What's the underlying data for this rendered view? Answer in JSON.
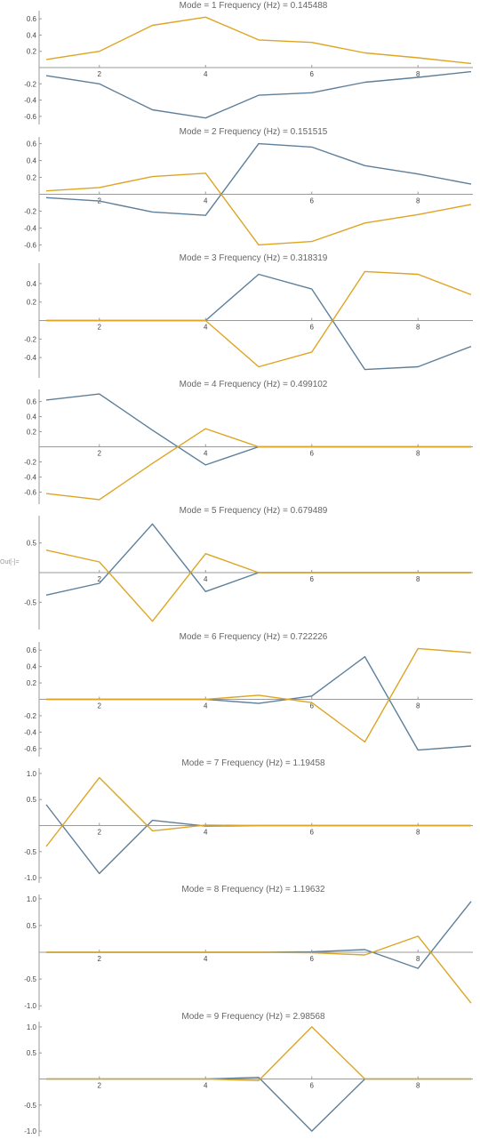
{
  "out_label": "Out[-]=",
  "colors": {
    "series_1": "#5E7F9A",
    "series_2": "#DDA523",
    "axis": "#9a9a9a"
  },
  "chart_data": [
    {
      "type": "line",
      "title": "Mode = 1 Frequency (Hz) = 0.145488",
      "x": [
        1,
        2,
        3,
        4,
        5,
        6,
        7,
        8,
        9
      ],
      "xticks": [
        2,
        4,
        6,
        8
      ],
      "ylim": [
        -0.7,
        0.7
      ],
      "yticks": [
        -0.6,
        -0.4,
        -0.2,
        0.2,
        0.4,
        0.6
      ],
      "ytick_labels": [
        "-0.6",
        "-0.4",
        "-0.2",
        "0.2",
        "0.4",
        "0.6"
      ],
      "series": [
        {
          "values": [
            -0.1,
            -0.2,
            -0.52,
            -0.62,
            -0.34,
            -0.31,
            -0.18,
            -0.12,
            -0.05
          ]
        },
        {
          "values": [
            0.1,
            0.2,
            0.52,
            0.62,
            0.34,
            0.31,
            0.18,
            0.12,
            0.05
          ]
        }
      ]
    },
    {
      "type": "line",
      "title": "Mode = 2 Frequency (Hz) = 0.151515",
      "x": [
        1,
        2,
        3,
        4,
        5,
        6,
        7,
        8,
        9
      ],
      "xticks": [
        2,
        4,
        6,
        8
      ],
      "ylim": [
        -0.68,
        0.68
      ],
      "yticks": [
        -0.6,
        -0.4,
        -0.2,
        0.2,
        0.4,
        0.6
      ],
      "ytick_labels": [
        "-0.6",
        "-0.4",
        "-0.2",
        "0.2",
        "0.4",
        "0.6"
      ],
      "series": [
        {
          "values": [
            -0.04,
            -0.08,
            -0.21,
            -0.25,
            0.6,
            0.56,
            0.34,
            0.24,
            0.12
          ]
        },
        {
          "values": [
            0.04,
            0.08,
            0.21,
            0.25,
            -0.6,
            -0.56,
            -0.34,
            -0.24,
            -0.12
          ]
        }
      ]
    },
    {
      "type": "line",
      "title": "Mode = 3 Frequency (Hz) = 0.318319",
      "x": [
        1,
        2,
        3,
        4,
        5,
        6,
        7,
        8,
        9
      ],
      "xticks": [
        2,
        4,
        6,
        8
      ],
      "ylim": [
        -0.62,
        0.62
      ],
      "yticks": [
        -0.4,
        -0.2,
        0.2,
        0.4
      ],
      "ytick_labels": [
        "-0.4",
        "-0.2",
        "0.2",
        "0.4"
      ],
      "series": [
        {
          "values": [
            0,
            0,
            0,
            0,
            0.5,
            0.34,
            -0.53,
            -0.5,
            -0.28
          ]
        },
        {
          "values": [
            0,
            0,
            0,
            0,
            -0.5,
            -0.34,
            0.53,
            0.5,
            0.28
          ]
        }
      ]
    },
    {
      "type": "line",
      "title": "Mode = 4 Frequency (Hz) = 0.499102",
      "x": [
        1,
        2,
        3,
        4,
        5,
        6,
        7,
        8,
        9
      ],
      "xticks": [
        2,
        4,
        6,
        8
      ],
      "ylim": [
        -0.76,
        0.76
      ],
      "yticks": [
        -0.6,
        -0.4,
        -0.2,
        0.2,
        0.4,
        0.6
      ],
      "ytick_labels": [
        "-0.6",
        "-0.4",
        "-0.2",
        "0.2",
        "0.4",
        "0.6"
      ],
      "series": [
        {
          "values": [
            0.62,
            0.7,
            0.22,
            -0.24,
            0,
            0,
            0,
            0,
            0
          ]
        },
        {
          "values": [
            -0.62,
            -0.7,
            -0.22,
            0.24,
            0,
            0,
            0,
            0,
            0
          ]
        }
      ]
    },
    {
      "type": "line",
      "title": "Mode = 5 Frequency (Hz) = 0.679489",
      "x": [
        1,
        2,
        3,
        4,
        5,
        6,
        7,
        8,
        9
      ],
      "xticks": [
        2,
        4,
        6,
        8
      ],
      "ylim": [
        -0.96,
        0.96
      ],
      "yticks": [
        -0.5,
        0.5
      ],
      "ytick_labels": [
        "-0.5",
        "0.5"
      ],
      "series": [
        {
          "values": [
            -0.38,
            -0.18,
            0.82,
            -0.32,
            0,
            0,
            0,
            0,
            0
          ]
        },
        {
          "values": [
            0.38,
            0.18,
            -0.82,
            0.32,
            0,
            0,
            0,
            0,
            0
          ]
        }
      ]
    },
    {
      "type": "line",
      "title": "Mode = 6 Frequency (Hz) = 0.722226",
      "x": [
        1,
        2,
        3,
        4,
        5,
        6,
        7,
        8,
        9
      ],
      "xticks": [
        2,
        4,
        6,
        8
      ],
      "ylim": [
        -0.7,
        0.7
      ],
      "yticks": [
        -0.6,
        -0.4,
        -0.2,
        0.2,
        0.4,
        0.6
      ],
      "ytick_labels": [
        "-0.6",
        "-0.4",
        "-0.2",
        "0.2",
        "0.4",
        "0.6"
      ],
      "series": [
        {
          "values": [
            0,
            0,
            0,
            0,
            -0.05,
            0.04,
            0.52,
            -0.62,
            -0.57
          ]
        },
        {
          "values": [
            0,
            0,
            0,
            0,
            0.05,
            -0.04,
            -0.52,
            0.62,
            0.57
          ]
        }
      ]
    },
    {
      "type": "line",
      "title": "Mode = 7 Frequency (Hz) = 1.19458",
      "x": [
        1,
        2,
        3,
        4,
        5,
        6,
        7,
        8,
        9
      ],
      "xticks": [
        2,
        4,
        6,
        8
      ],
      "ylim": [
        -1.1,
        1.1
      ],
      "yticks": [
        -1.0,
        -0.5,
        0.5,
        1.0
      ],
      "ytick_labels": [
        "-1.0",
        "-0.5",
        "0.5",
        "1.0"
      ],
      "series": [
        {
          "values": [
            0.4,
            -0.92,
            0.1,
            -0.01,
            0,
            0,
            0,
            0,
            0
          ]
        },
        {
          "values": [
            -0.4,
            0.92,
            -0.1,
            0.01,
            0,
            0,
            0,
            0,
            0
          ]
        }
      ]
    },
    {
      "type": "line",
      "title": "Mode = 8 Frequency (Hz) = 1.19632",
      "x": [
        1,
        2,
        3,
        4,
        5,
        6,
        7,
        8,
        9
      ],
      "xticks": [
        2,
        4,
        6,
        8
      ],
      "ylim": [
        -1.08,
        1.08
      ],
      "yticks": [
        -1.0,
        -0.5,
        0.5,
        1.0
      ],
      "ytick_labels": [
        "-1.0",
        "-0.5",
        "0.5",
        "1.0"
      ],
      "series": [
        {
          "values": [
            0,
            0,
            0,
            0,
            0,
            0.01,
            0.05,
            -0.3,
            0.95
          ]
        },
        {
          "values": [
            0,
            0,
            0,
            0,
            0,
            -0.01,
            -0.05,
            0.3,
            -0.95
          ]
        }
      ]
    },
    {
      "type": "line",
      "title": "Mode = 9 Frequency (Hz) = 2.98568",
      "x": [
        1,
        2,
        3,
        4,
        5,
        6,
        7,
        8,
        9
      ],
      "xticks": [
        2,
        4,
        6,
        8
      ],
      "ylim": [
        -1.1,
        1.1
      ],
      "yticks": [
        -1.0,
        -0.5,
        0.5,
        1.0
      ],
      "ytick_labels": [
        "-1.0",
        "-0.5",
        "0.5",
        "1.0"
      ],
      "series": [
        {
          "values": [
            0,
            0,
            0,
            0,
            0.03,
            -1.0,
            0,
            0,
            0
          ]
        },
        {
          "values": [
            0,
            0,
            0,
            0,
            -0.03,
            1.0,
            0,
            0,
            0
          ]
        }
      ]
    }
  ]
}
